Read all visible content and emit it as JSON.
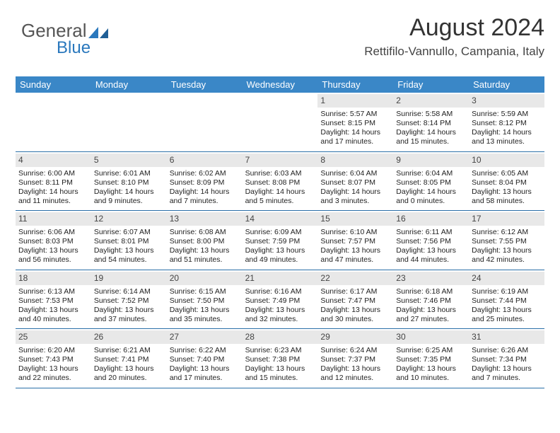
{
  "logo": {
    "text1": "General",
    "text2": "Blue"
  },
  "title": "August 2024",
  "subtitle": "Rettifilo-Vannullo, Campania, Italy",
  "colors": {
    "header_bg": "#3a87c7",
    "header_text": "#ffffff",
    "daynum_bg": "#e8e8e8",
    "rule": "#2a6fa8",
    "logo_accent": "#2a78bd"
  },
  "day_names": [
    "Sunday",
    "Monday",
    "Tuesday",
    "Wednesday",
    "Thursday",
    "Friday",
    "Saturday"
  ],
  "weeks": [
    [
      {
        "n": "",
        "sr": "",
        "ss": "",
        "dl": ""
      },
      {
        "n": "",
        "sr": "",
        "ss": "",
        "dl": ""
      },
      {
        "n": "",
        "sr": "",
        "ss": "",
        "dl": ""
      },
      {
        "n": "",
        "sr": "",
        "ss": "",
        "dl": ""
      },
      {
        "n": "1",
        "sr": "Sunrise: 5:57 AM",
        "ss": "Sunset: 8:15 PM",
        "dl": "Daylight: 14 hours and 17 minutes."
      },
      {
        "n": "2",
        "sr": "Sunrise: 5:58 AM",
        "ss": "Sunset: 8:14 PM",
        "dl": "Daylight: 14 hours and 15 minutes."
      },
      {
        "n": "3",
        "sr": "Sunrise: 5:59 AM",
        "ss": "Sunset: 8:12 PM",
        "dl": "Daylight: 14 hours and 13 minutes."
      }
    ],
    [
      {
        "n": "4",
        "sr": "Sunrise: 6:00 AM",
        "ss": "Sunset: 8:11 PM",
        "dl": "Daylight: 14 hours and 11 minutes."
      },
      {
        "n": "5",
        "sr": "Sunrise: 6:01 AM",
        "ss": "Sunset: 8:10 PM",
        "dl": "Daylight: 14 hours and 9 minutes."
      },
      {
        "n": "6",
        "sr": "Sunrise: 6:02 AM",
        "ss": "Sunset: 8:09 PM",
        "dl": "Daylight: 14 hours and 7 minutes."
      },
      {
        "n": "7",
        "sr": "Sunrise: 6:03 AM",
        "ss": "Sunset: 8:08 PM",
        "dl": "Daylight: 14 hours and 5 minutes."
      },
      {
        "n": "8",
        "sr": "Sunrise: 6:04 AM",
        "ss": "Sunset: 8:07 PM",
        "dl": "Daylight: 14 hours and 3 minutes."
      },
      {
        "n": "9",
        "sr": "Sunrise: 6:04 AM",
        "ss": "Sunset: 8:05 PM",
        "dl": "Daylight: 14 hours and 0 minutes."
      },
      {
        "n": "10",
        "sr": "Sunrise: 6:05 AM",
        "ss": "Sunset: 8:04 PM",
        "dl": "Daylight: 13 hours and 58 minutes."
      }
    ],
    [
      {
        "n": "11",
        "sr": "Sunrise: 6:06 AM",
        "ss": "Sunset: 8:03 PM",
        "dl": "Daylight: 13 hours and 56 minutes."
      },
      {
        "n": "12",
        "sr": "Sunrise: 6:07 AM",
        "ss": "Sunset: 8:01 PM",
        "dl": "Daylight: 13 hours and 54 minutes."
      },
      {
        "n": "13",
        "sr": "Sunrise: 6:08 AM",
        "ss": "Sunset: 8:00 PM",
        "dl": "Daylight: 13 hours and 51 minutes."
      },
      {
        "n": "14",
        "sr": "Sunrise: 6:09 AM",
        "ss": "Sunset: 7:59 PM",
        "dl": "Daylight: 13 hours and 49 minutes."
      },
      {
        "n": "15",
        "sr": "Sunrise: 6:10 AM",
        "ss": "Sunset: 7:57 PM",
        "dl": "Daylight: 13 hours and 47 minutes."
      },
      {
        "n": "16",
        "sr": "Sunrise: 6:11 AM",
        "ss": "Sunset: 7:56 PM",
        "dl": "Daylight: 13 hours and 44 minutes."
      },
      {
        "n": "17",
        "sr": "Sunrise: 6:12 AM",
        "ss": "Sunset: 7:55 PM",
        "dl": "Daylight: 13 hours and 42 minutes."
      }
    ],
    [
      {
        "n": "18",
        "sr": "Sunrise: 6:13 AM",
        "ss": "Sunset: 7:53 PM",
        "dl": "Daylight: 13 hours and 40 minutes."
      },
      {
        "n": "19",
        "sr": "Sunrise: 6:14 AM",
        "ss": "Sunset: 7:52 PM",
        "dl": "Daylight: 13 hours and 37 minutes."
      },
      {
        "n": "20",
        "sr": "Sunrise: 6:15 AM",
        "ss": "Sunset: 7:50 PM",
        "dl": "Daylight: 13 hours and 35 minutes."
      },
      {
        "n": "21",
        "sr": "Sunrise: 6:16 AM",
        "ss": "Sunset: 7:49 PM",
        "dl": "Daylight: 13 hours and 32 minutes."
      },
      {
        "n": "22",
        "sr": "Sunrise: 6:17 AM",
        "ss": "Sunset: 7:47 PM",
        "dl": "Daylight: 13 hours and 30 minutes."
      },
      {
        "n": "23",
        "sr": "Sunrise: 6:18 AM",
        "ss": "Sunset: 7:46 PM",
        "dl": "Daylight: 13 hours and 27 minutes."
      },
      {
        "n": "24",
        "sr": "Sunrise: 6:19 AM",
        "ss": "Sunset: 7:44 PM",
        "dl": "Daylight: 13 hours and 25 minutes."
      }
    ],
    [
      {
        "n": "25",
        "sr": "Sunrise: 6:20 AM",
        "ss": "Sunset: 7:43 PM",
        "dl": "Daylight: 13 hours and 22 minutes."
      },
      {
        "n": "26",
        "sr": "Sunrise: 6:21 AM",
        "ss": "Sunset: 7:41 PM",
        "dl": "Daylight: 13 hours and 20 minutes."
      },
      {
        "n": "27",
        "sr": "Sunrise: 6:22 AM",
        "ss": "Sunset: 7:40 PM",
        "dl": "Daylight: 13 hours and 17 minutes."
      },
      {
        "n": "28",
        "sr": "Sunrise: 6:23 AM",
        "ss": "Sunset: 7:38 PM",
        "dl": "Daylight: 13 hours and 15 minutes."
      },
      {
        "n": "29",
        "sr": "Sunrise: 6:24 AM",
        "ss": "Sunset: 7:37 PM",
        "dl": "Daylight: 13 hours and 12 minutes."
      },
      {
        "n": "30",
        "sr": "Sunrise: 6:25 AM",
        "ss": "Sunset: 7:35 PM",
        "dl": "Daylight: 13 hours and 10 minutes."
      },
      {
        "n": "31",
        "sr": "Sunrise: 6:26 AM",
        "ss": "Sunset: 7:34 PM",
        "dl": "Daylight: 13 hours and 7 minutes."
      }
    ]
  ]
}
